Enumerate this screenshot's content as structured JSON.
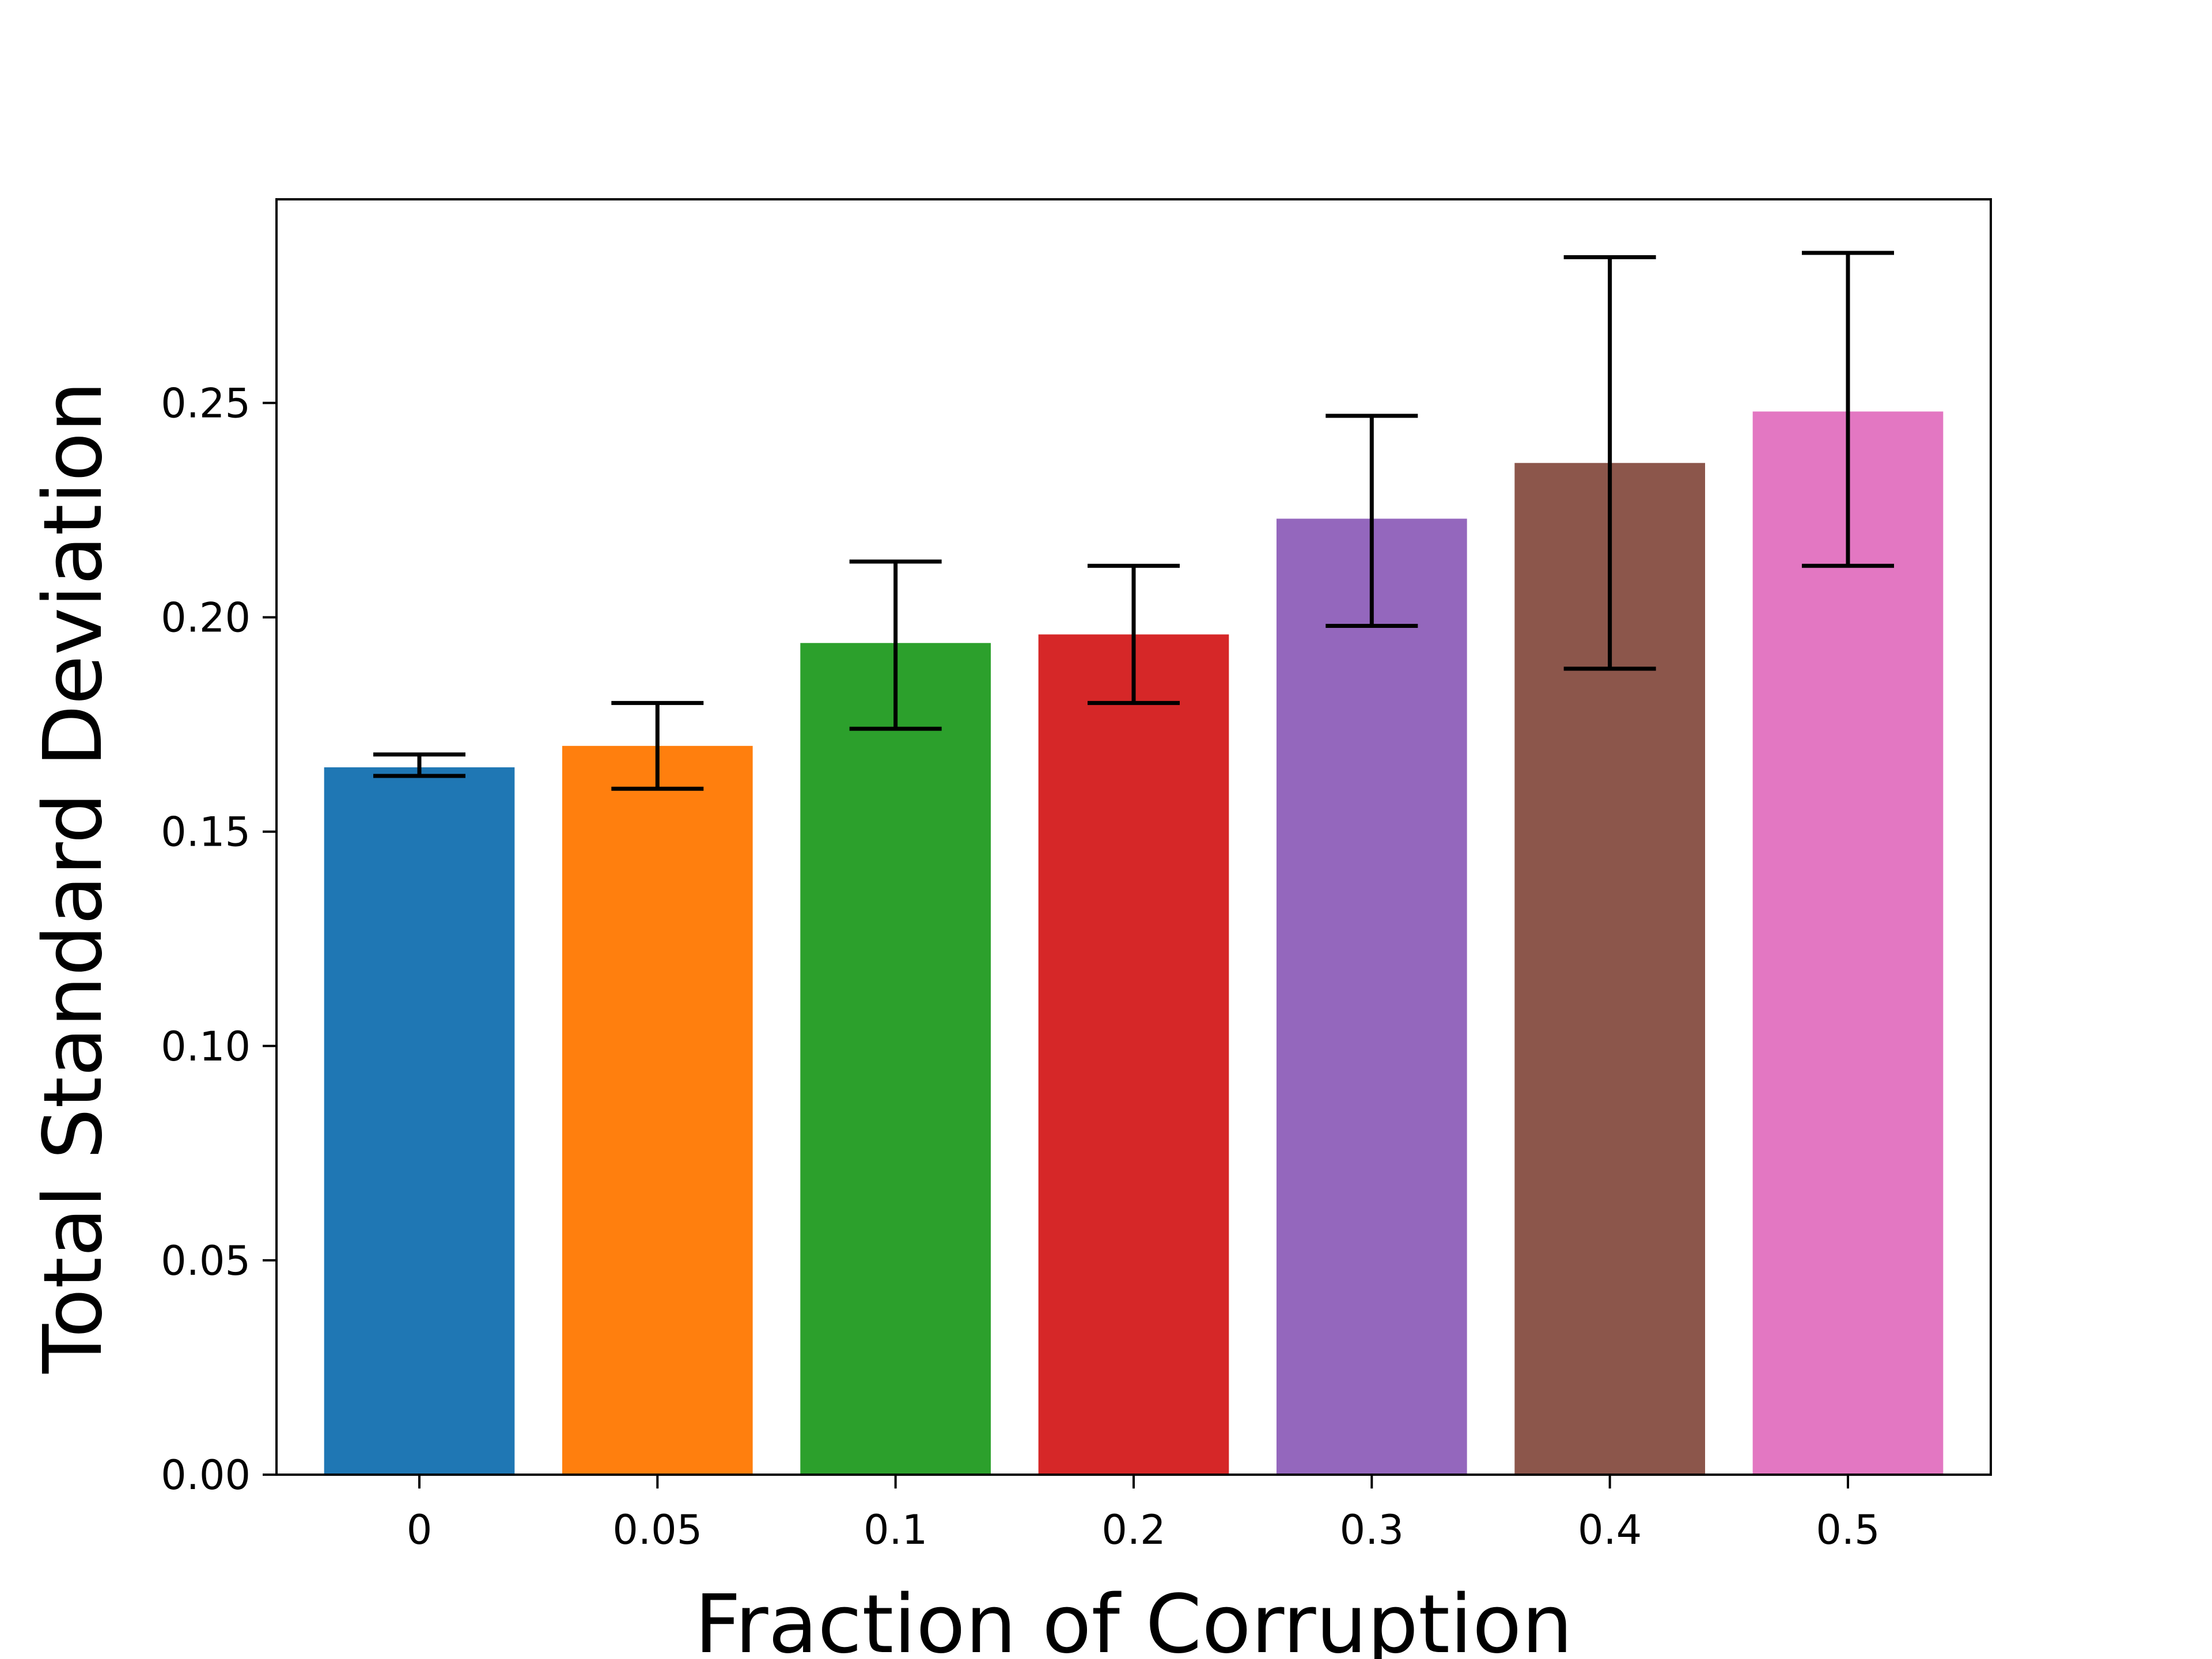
{
  "chart_data": {
    "type": "bar",
    "title": "",
    "xlabel": "Fraction of Corruption",
    "ylabel": "Total Standard Deviation",
    "categories": [
      "0",
      "0.05",
      "0.1",
      "0.2",
      "0.3",
      "0.4",
      "0.5"
    ],
    "values": [
      0.165,
      0.17,
      0.194,
      0.196,
      0.223,
      0.236,
      0.248
    ],
    "error_low": [
      0.163,
      0.16,
      0.174,
      0.18,
      0.198,
      0.188,
      0.212
    ],
    "error_high": [
      0.168,
      0.18,
      0.213,
      0.212,
      0.247,
      0.284,
      0.285
    ],
    "colors": [
      "#1f77b4",
      "#ff7f0e",
      "#2ca02c",
      "#d62728",
      "#9467bd",
      "#8c564b",
      "#e377c2"
    ],
    "error_color": "#000000",
    "ylim": [
      0,
      0.2975
    ],
    "yticks": [
      0.0,
      0.05,
      0.1,
      0.15,
      0.2,
      0.25
    ],
    "ytick_labels": [
      "0.00",
      "0.05",
      "0.10",
      "0.15",
      "0.20",
      "0.25"
    ],
    "grid": false,
    "legend": "none"
  }
}
